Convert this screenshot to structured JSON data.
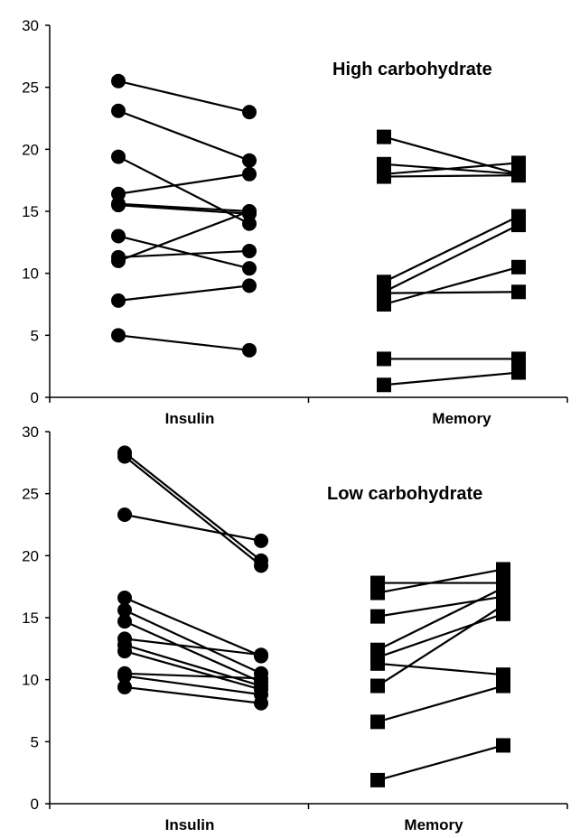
{
  "chart_data": [
    {
      "type": "line",
      "title": "High carbohydrate",
      "categories": [
        "Insulin",
        "Memory"
      ],
      "ylim": [
        0,
        30
      ],
      "yticks": [
        "0",
        "5",
        "10",
        "15",
        "20",
        "25",
        "30"
      ],
      "grid": false,
      "groups": [
        {
          "name": "Insulin",
          "marker": "circle",
          "pairs": [
            [
              25.5,
              23.0
            ],
            [
              23.1,
              19.1
            ],
            [
              19.4,
              14.0
            ],
            [
              16.4,
              18.0
            ],
            [
              15.6,
              15.0
            ],
            [
              15.5,
              14.8
            ],
            [
              13.0,
              10.4
            ],
            [
              11.3,
              11.8
            ],
            [
              11.0,
              15.0
            ],
            [
              7.8,
              9.0
            ],
            [
              5.0,
              3.8
            ]
          ]
        },
        {
          "name": "Memory",
          "marker": "square",
          "pairs": [
            [
              21.0,
              18.0
            ],
            [
              18.8,
              18.0
            ],
            [
              18.0,
              18.9
            ],
            [
              17.8,
              17.9
            ],
            [
              9.3,
              14.6
            ],
            [
              8.5,
              13.9
            ],
            [
              8.4,
              8.5
            ],
            [
              7.5,
              10.5
            ],
            [
              3.1,
              3.1
            ],
            [
              1.0,
              2.0
            ]
          ]
        }
      ]
    },
    {
      "type": "line",
      "title": "Low carbohydrate",
      "categories": [
        "Insulin",
        "Memory"
      ],
      "ylim": [
        0,
        30
      ],
      "yticks": [
        "0",
        "5",
        "10",
        "15",
        "20",
        "25",
        "30"
      ],
      "grid": false,
      "groups": [
        {
          "name": "Insulin",
          "marker": "circle",
          "pairs": [
            [
              28.3,
              19.6
            ],
            [
              28.0,
              19.2
            ],
            [
              23.3,
              21.2
            ],
            [
              16.6,
              11.9
            ],
            [
              15.6,
              10.5
            ],
            [
              14.7,
              9.8
            ],
            [
              13.3,
              12.0
            ],
            [
              12.8,
              9.5
            ],
            [
              12.3,
              9.2
            ],
            [
              10.5,
              10.1
            ],
            [
              10.3,
              8.8
            ],
            [
              9.4,
              8.1
            ]
          ]
        },
        {
          "name": "Memory",
          "marker": "square",
          "pairs": [
            [
              17.8,
              17.8
            ],
            [
              17.0,
              18.9
            ],
            [
              15.1,
              16.7
            ],
            [
              12.4,
              17.4
            ],
            [
              11.8,
              15.3
            ],
            [
              11.3,
              10.4
            ],
            [
              9.5,
              16.0
            ],
            [
              6.6,
              9.5
            ],
            [
              1.9,
              4.7
            ]
          ]
        }
      ]
    }
  ]
}
